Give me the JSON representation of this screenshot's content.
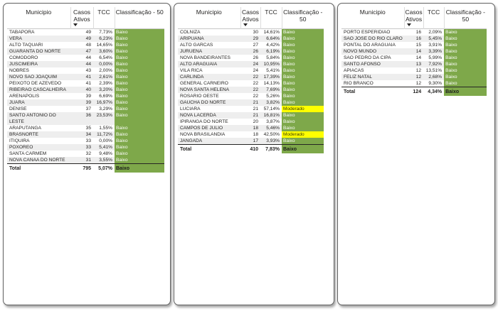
{
  "headers": {
    "municipio": "Municipio",
    "casos": "Casos Ativos",
    "tcc": "TCC",
    "classificacao": "Classificação - 50"
  },
  "colors": {
    "baixo": "#7ea84a",
    "moderado": "#ffff00"
  },
  "tables": [
    {
      "rows": [
        [
          "TABAPORA",
          "49",
          "7,73%",
          "Baixo"
        ],
        [
          "VERA",
          "49",
          "6,23%",
          "Baixo"
        ],
        [
          "ALTO TAQUARI",
          "48",
          "14,65%",
          "Baixo"
        ],
        [
          "GUARANTA DO NORTE",
          "47",
          "3,60%",
          "Baixo"
        ],
        [
          "COMODORO",
          "44",
          "6,54%",
          "Baixo"
        ],
        [
          "JUSCIMEIRA",
          "44",
          "0,00%",
          "Baixo"
        ],
        [
          "NOBRES",
          "43",
          "2,00%",
          "Baixo"
        ],
        [
          "NOVO SAO JOAQUIM",
          "41",
          "2,61%",
          "Baixo"
        ],
        [
          "PEIXOTO DE AZEVEDO",
          "41",
          "2,39%",
          "Baixo"
        ],
        [
          "RIBEIRAO CASCALHEIRA",
          "40",
          "3,20%",
          "Baixo"
        ],
        [
          "ARENAPOLIS",
          "39",
          "6,69%",
          "Baixo"
        ],
        [
          "JUARA",
          "39",
          "16,97%",
          "Baixo"
        ],
        [
          "DENISE",
          "37",
          "3,29%",
          "Baixo"
        ],
        [
          "SANTO ANTONIO DO LESTE",
          "36",
          "23,53%",
          "Baixo"
        ],
        [
          "ARAPUTANGA",
          "35",
          "1,55%",
          "Baixo"
        ],
        [
          "BRASNORTE",
          "34",
          "11,72%",
          "Baixo"
        ],
        [
          "ITIQUIRA",
          "33",
          "0,00%",
          "Baixo"
        ],
        [
          "POXOREO",
          "33",
          "5,41%",
          "Baixo"
        ],
        [
          "SANTA CARMEM",
          "32",
          "9,48%",
          "Baixo"
        ],
        [
          "NOVA CANAA DO NORTE",
          "31",
          "3,55%",
          "Baixo"
        ]
      ],
      "total": [
        "Total",
        "795",
        "5,07%",
        "Baixo"
      ]
    },
    {
      "rows": [
        [
          "COLNIZA",
          "30",
          "14,61%",
          "Baixo"
        ],
        [
          "ARIPUANA",
          "29",
          "6,64%",
          "Baixo"
        ],
        [
          "ALTO GARCAS",
          "27",
          "4,42%",
          "Baixo"
        ],
        [
          "JURUENA",
          "26",
          "6,19%",
          "Baixo"
        ],
        [
          "NOVA BANDEIRANTES",
          "26",
          "5,84%",
          "Baixo"
        ],
        [
          "ALTO ARAGUAIA",
          "24",
          "10,95%",
          "Baixo"
        ],
        [
          "VILA RICA",
          "24",
          "5,41%",
          "Baixo"
        ],
        [
          "CARLINDA",
          "22",
          "17,39%",
          "Baixo"
        ],
        [
          "GENERAL CARNEIRO",
          "22",
          "14,13%",
          "Baixo"
        ],
        [
          "NOVA SANTA HELENA",
          "22",
          "7,69%",
          "Baixo"
        ],
        [
          "ROSARIO OESTE",
          "22",
          "5,26%",
          "Baixo"
        ],
        [
          "GAUCHA DO NORTE",
          "21",
          "3,82%",
          "Baixo"
        ],
        [
          "LUCIARA",
          "21",
          "57,14%",
          "Moderado"
        ],
        [
          "NOVA LACERDA",
          "21",
          "16,81%",
          "Baixo"
        ],
        [
          "IPIRANGA DO NORTE",
          "20",
          "3,87%",
          "Baixo"
        ],
        [
          "CAMPOS DE JULIO",
          "18",
          "5,46%",
          "Baixo"
        ],
        [
          "NOVA BRASILANDIA",
          "18",
          "42,50%",
          "Moderado"
        ],
        [
          "JANGADA",
          "17",
          "3,93%",
          "Baixo"
        ]
      ],
      "total": [
        "Total",
        "410",
        "7,83%",
        "Baixo"
      ]
    },
    {
      "rows": [
        [
          "PORTO ESPERIDIAO",
          "16",
          "2,09%",
          "Baixo"
        ],
        [
          "SAO JOSE DO RIO CLARO",
          "16",
          "5,45%",
          "Baixo"
        ],
        [
          "PONTAL DO ARAGUAIA",
          "15",
          "3,91%",
          "Baixo"
        ],
        [
          "NOVO MUNDO",
          "14",
          "3,39%",
          "Baixo"
        ],
        [
          "SAO PEDRO DA CIPA",
          "14",
          "5,99%",
          "Baixo"
        ],
        [
          "SANTO AFONSO",
          "13",
          "7,92%",
          "Baixo"
        ],
        [
          "APIACAS",
          "12",
          "13,51%",
          "Baixo"
        ],
        [
          "FELIZ NATAL",
          "12",
          "2,68%",
          "Baixo"
        ],
        [
          "RIO BRANCO",
          "12",
          "9,30%",
          "Baixo"
        ]
      ],
      "total": [
        "Total",
        "124",
        "4,34%",
        "Baixo"
      ]
    }
  ]
}
